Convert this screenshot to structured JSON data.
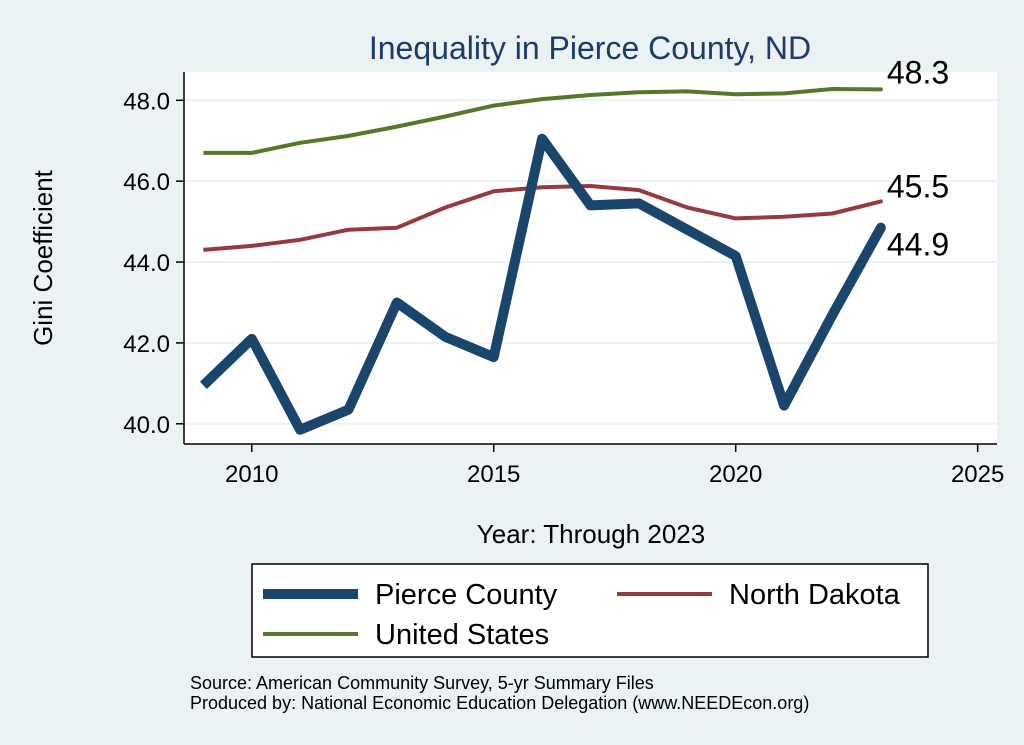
{
  "colors": {
    "background": "#eaf2f3",
    "plot_background": "#ffffff",
    "title": "#1f3a68",
    "text": "#000000",
    "grid": "#eaf2f3"
  },
  "chart_data": {
    "type": "line",
    "title": "Inequality in Pierce County, ND",
    "xlabel": "Year: Through 2023",
    "ylabel": "Gini Coefficient",
    "xlim": [
      2008.6,
      2025.4
    ],
    "ylim": [
      39.5,
      48.7
    ],
    "xticks": [
      2010,
      2015,
      2020,
      2025
    ],
    "yticks": [
      40.0,
      42.0,
      44.0,
      46.0,
      48.0
    ],
    "x": [
      2009,
      2010,
      2011,
      2012,
      2013,
      2014,
      2015,
      2016,
      2017,
      2018,
      2019,
      2020,
      2021,
      2022,
      2023
    ],
    "series": [
      {
        "name": "Pierce County",
        "color": "#1b466b",
        "width": 10,
        "values": [
          40.95,
          42.1,
          39.85,
          40.35,
          43.0,
          42.15,
          41.65,
          47.05,
          45.4,
          45.45,
          44.8,
          44.15,
          40.45,
          42.7,
          44.85
        ],
        "end_label": "44.9"
      },
      {
        "name": "North Dakota",
        "color": "#953a3e",
        "width": 4,
        "values": [
          44.3,
          44.4,
          44.55,
          44.8,
          44.85,
          45.35,
          45.75,
          45.85,
          45.88,
          45.78,
          45.35,
          45.08,
          45.12,
          45.2,
          45.5
        ],
        "end_label": "45.5"
      },
      {
        "name": "United States",
        "color": "#55782b",
        "width": 4,
        "values": [
          46.7,
          46.7,
          46.95,
          47.12,
          47.35,
          47.6,
          47.87,
          48.03,
          48.13,
          48.2,
          48.22,
          48.15,
          48.17,
          48.28,
          48.27
        ],
        "end_label": "48.3"
      }
    ],
    "legend": {
      "placement": "bottom",
      "order": [
        "Pierce County",
        "North Dakota",
        "United States"
      ]
    }
  },
  "footer": {
    "source": "Source: American Community Survey, 5-yr Summary Files",
    "produced_by": "Produced by: National Economic Education Delegation (www.NEEDEcon.org)"
  }
}
